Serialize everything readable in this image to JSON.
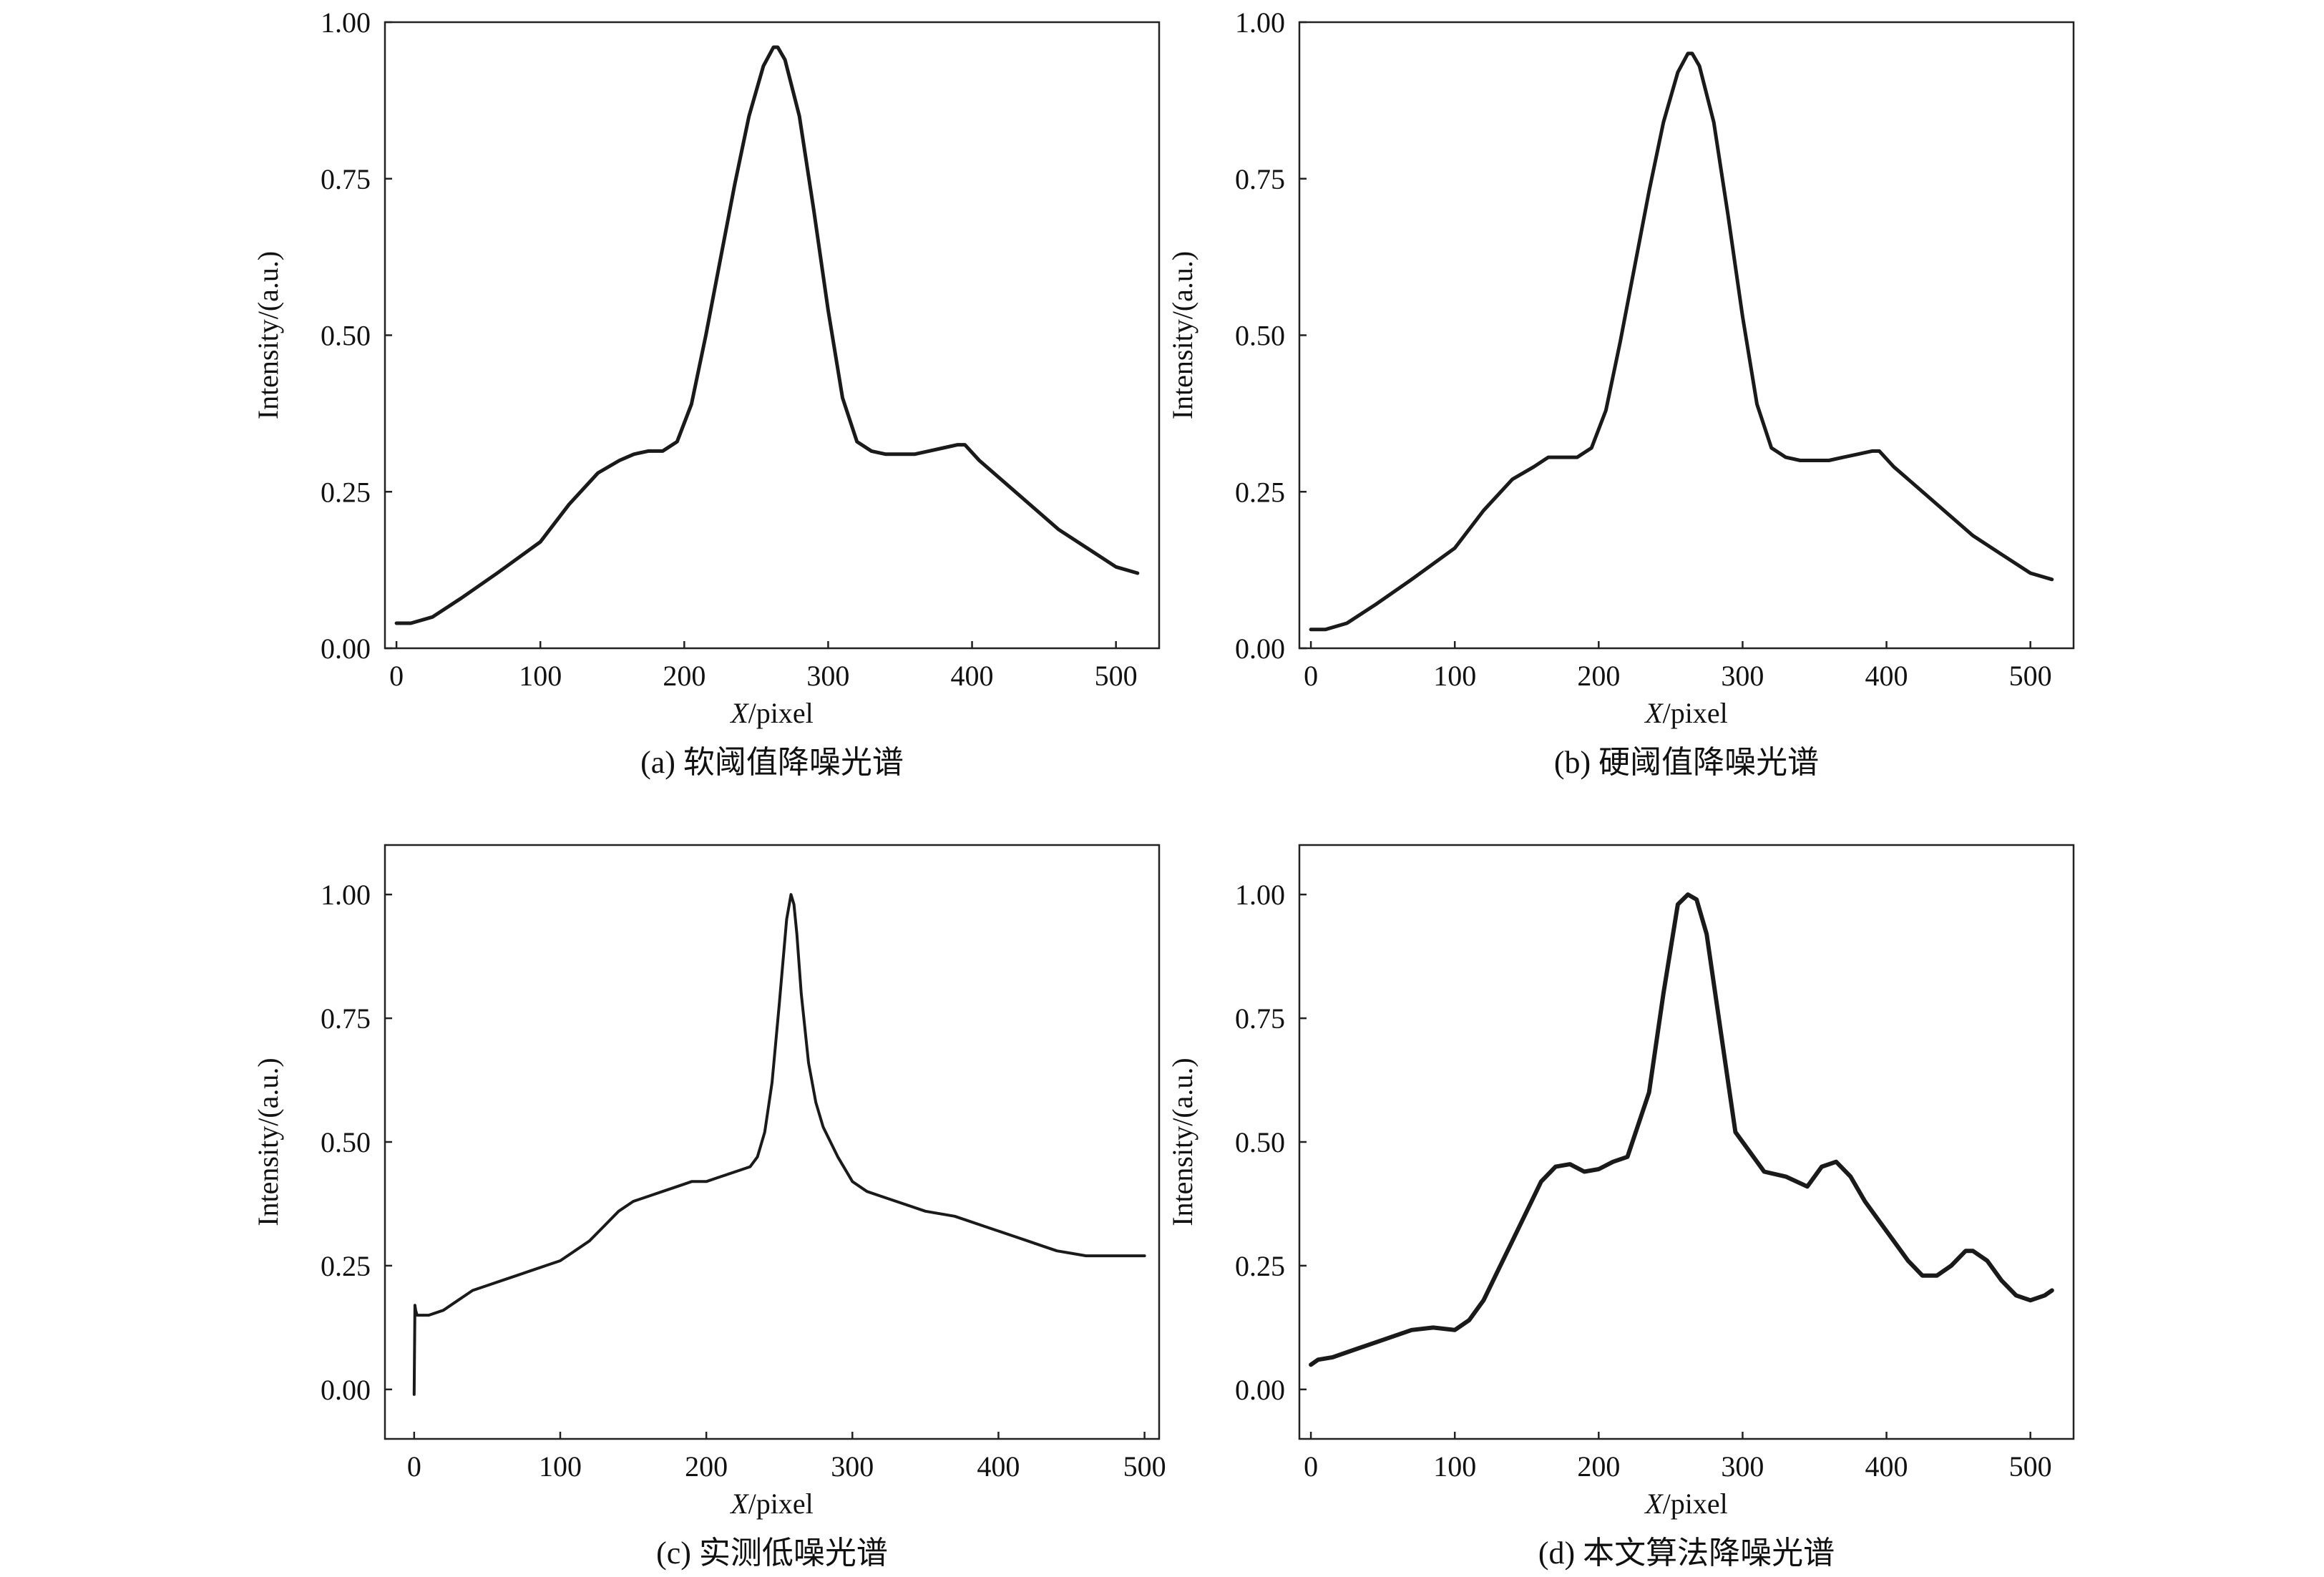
{
  "figure": {
    "panels": [
      {
        "id": "a",
        "caption": "(a) 软阈值降噪光谱",
        "xlabel_italic": "X",
        "xlabel_rest": "/pixel",
        "ylabel": "Intensity/(a.u.)",
        "chart_data": {
          "type": "line",
          "xlabel": "X/pixel",
          "ylabel": "Intensity/(a.u.)",
          "xlim": [
            -8,
            530
          ],
          "ylim": [
            0,
            1.0
          ],
          "xticks": [
            "0",
            "100",
            "200",
            "300",
            "400",
            "500"
          ],
          "yticks": [
            "0.00",
            "0.25",
            "0.50",
            "0.75",
            "1.00"
          ],
          "grid": false,
          "series": [
            {
              "x": [
                0,
                10,
                25,
                45,
                70,
                100,
                120,
                140,
                155,
                165,
                175,
                185,
                195,
                205,
                215,
                225,
                235,
                245,
                255,
                262,
                265,
                270,
                280,
                290,
                300,
                310,
                320,
                330,
                340,
                350,
                360,
                370,
                380,
                390,
                395,
                405,
                420,
                440,
                460,
                480,
                500,
                515
              ],
              "y": [
                0.04,
                0.04,
                0.05,
                0.08,
                0.12,
                0.17,
                0.23,
                0.28,
                0.3,
                0.31,
                0.315,
                0.315,
                0.33,
                0.39,
                0.5,
                0.62,
                0.74,
                0.85,
                0.93,
                0.96,
                0.96,
                0.94,
                0.85,
                0.7,
                0.54,
                0.4,
                0.33,
                0.315,
                0.31,
                0.31,
                0.31,
                0.315,
                0.32,
                0.325,
                0.325,
                0.3,
                0.27,
                0.23,
                0.19,
                0.16,
                0.13,
                0.12
              ]
            }
          ]
        }
      },
      {
        "id": "b",
        "caption": "(b) 硬阈值降噪光谱",
        "xlabel_italic": "X",
        "xlabel_rest": "/pixel",
        "ylabel": "Intensity/(a.u.)",
        "chart_data": {
          "type": "line",
          "xlabel": "X/pixel",
          "ylabel": "Intensity/(a.u.)",
          "xlim": [
            -8,
            530
          ],
          "ylim": [
            0,
            1.0
          ],
          "xticks": [
            "0",
            "100",
            "200",
            "300",
            "400",
            "500"
          ],
          "yticks": [
            "0.00",
            "0.25",
            "0.50",
            "0.75",
            "1.00"
          ],
          "grid": false,
          "series": [
            {
              "x": [
                0,
                10,
                25,
                45,
                70,
                100,
                120,
                140,
                155,
                165,
                175,
                185,
                195,
                205,
                215,
                225,
                235,
                245,
                255,
                262,
                265,
                270,
                280,
                290,
                300,
                310,
                320,
                330,
                340,
                350,
                360,
                370,
                380,
                390,
                395,
                405,
                420,
                440,
                460,
                480,
                500,
                515
              ],
              "y": [
                0.03,
                0.03,
                0.04,
                0.07,
                0.11,
                0.16,
                0.22,
                0.27,
                0.29,
                0.305,
                0.305,
                0.305,
                0.32,
                0.38,
                0.49,
                0.61,
                0.73,
                0.84,
                0.92,
                0.95,
                0.95,
                0.93,
                0.84,
                0.69,
                0.53,
                0.39,
                0.32,
                0.305,
                0.3,
                0.3,
                0.3,
                0.305,
                0.31,
                0.315,
                0.315,
                0.29,
                0.26,
                0.22,
                0.18,
                0.15,
                0.12,
                0.11
              ]
            }
          ]
        }
      },
      {
        "id": "c",
        "caption": "(c) 实测低噪光谱",
        "xlabel_italic": "X",
        "xlabel_rest": "/pixel",
        "ylabel": "Intensity/(a.u.)",
        "chart_data": {
          "type": "line",
          "xlabel": "X/pixel",
          "ylabel": "Intensity/(a.u.)",
          "xlim": [
            -20,
            510
          ],
          "ylim": [
            -0.1,
            1.1
          ],
          "xticks": [
            "0",
            "100",
            "200",
            "300",
            "400",
            "500"
          ],
          "yticks": [
            "0.00",
            "0.25",
            "0.50",
            "0.75",
            "1.00"
          ],
          "grid": false,
          "series": [
            {
              "x": [
                0,
                0.5,
                1,
                2,
                5,
                10,
                20,
                30,
                40,
                50,
                60,
                70,
                80,
                90,
                100,
                110,
                120,
                130,
                140,
                150,
                160,
                170,
                180,
                190,
                200,
                210,
                220,
                230,
                235,
                240,
                245,
                250,
                255,
                258,
                260,
                262,
                265,
                270,
                275,
                280,
                290,
                300,
                310,
                320,
                330,
                340,
                350,
                360,
                370,
                380,
                390,
                400,
                410,
                420,
                430,
                440,
                450,
                460,
                470,
                480,
                490,
                500
              ],
              "y": [
                -0.01,
                0.17,
                0.16,
                0.15,
                0.15,
                0.15,
                0.16,
                0.18,
                0.2,
                0.21,
                0.22,
                0.23,
                0.24,
                0.25,
                0.26,
                0.28,
                0.3,
                0.33,
                0.36,
                0.38,
                0.39,
                0.4,
                0.41,
                0.42,
                0.42,
                0.43,
                0.44,
                0.45,
                0.47,
                0.52,
                0.62,
                0.78,
                0.95,
                1.0,
                0.98,
                0.92,
                0.8,
                0.66,
                0.58,
                0.53,
                0.47,
                0.42,
                0.4,
                0.39,
                0.38,
                0.37,
                0.36,
                0.355,
                0.35,
                0.34,
                0.33,
                0.32,
                0.31,
                0.3,
                0.29,
                0.28,
                0.275,
                0.27,
                0.27,
                0.27,
                0.27,
                0.27
              ]
            }
          ]
        }
      },
      {
        "id": "d",
        "caption": "(d) 本文算法降噪光谱",
        "xlabel_italic": "X",
        "xlabel_rest": "/pixel",
        "ylabel": "Intensity/(a.u.)",
        "chart_data": {
          "type": "line",
          "xlabel": "X/pixel",
          "ylabel": "Intensity/(a.u.)",
          "xlim": [
            -8,
            530
          ],
          "ylim": [
            -0.1,
            1.1
          ],
          "xticks": [
            "0",
            "100",
            "200",
            "300",
            "400",
            "500"
          ],
          "yticks": [
            "0.00",
            "0.25",
            "0.50",
            "0.75",
            "1.00"
          ],
          "grid": false,
          "series": [
            {
              "x": [
                0,
                5,
                15,
                30,
                50,
                70,
                85,
                100,
                110,
                120,
                130,
                140,
                150,
                160,
                170,
                180,
                190,
                200,
                210,
                220,
                235,
                245,
                255,
                262,
                268,
                275,
                282,
                290,
                295,
                305,
                315,
                330,
                345,
                355,
                365,
                375,
                385,
                395,
                405,
                415,
                425,
                435,
                445,
                455,
                460,
                470,
                480,
                490,
                500,
                510,
                515
              ],
              "y": [
                0.05,
                0.06,
                0.065,
                0.08,
                0.1,
                0.12,
                0.125,
                0.12,
                0.14,
                0.18,
                0.24,
                0.3,
                0.36,
                0.42,
                0.45,
                0.455,
                0.44,
                0.445,
                0.46,
                0.47,
                0.6,
                0.8,
                0.98,
                1.0,
                0.99,
                0.92,
                0.78,
                0.62,
                0.52,
                0.48,
                0.44,
                0.43,
                0.41,
                0.45,
                0.46,
                0.43,
                0.38,
                0.34,
                0.3,
                0.26,
                0.23,
                0.23,
                0.25,
                0.28,
                0.28,
                0.26,
                0.22,
                0.19,
                0.18,
                0.19,
                0.2
              ]
            }
          ]
        }
      }
    ]
  }
}
